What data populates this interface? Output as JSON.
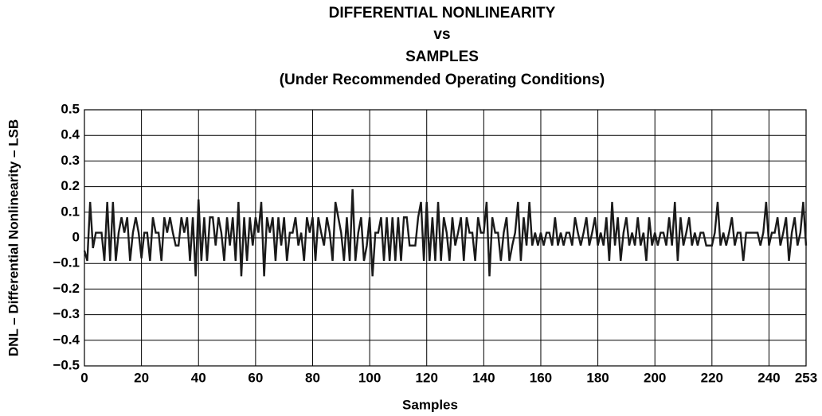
{
  "chart_data": {
    "type": "line",
    "title": [
      "DIFFERENTIAL NONLINEARITY",
      "vs",
      "SAMPLES",
      "(Under Recommended Operating Conditions)"
    ],
    "xlabel": "Samples",
    "ylabel": "DNL – Differential Nonlinearity – LSB",
    "color": "#1a1a1a",
    "grid": true,
    "xlim": [
      0,
      253
    ],
    "ylim": [
      -0.5,
      0.5
    ],
    "xticks": [
      0,
      20,
      40,
      60,
      80,
      100,
      120,
      140,
      160,
      180,
      200,
      220,
      240,
      253
    ],
    "yticks": [
      0.5,
      0.4,
      0.3,
      0.2,
      0.1,
      0,
      {
        "value": -0.1,
        "label": "−0.1"
      },
      {
        "value": -0.2,
        "label": "−0.2"
      },
      {
        "value": -0.3,
        "label": "−0.3"
      },
      {
        "value": -0.4,
        "label": "−0.4"
      },
      {
        "value": -0.5,
        "label": "−0.5"
      }
    ],
    "x": [
      0,
      1,
      2,
      3,
      4,
      5,
      6,
      7,
      8,
      9,
      10,
      11,
      12,
      13,
      14,
      15,
      16,
      17,
      18,
      19,
      20,
      21,
      22,
      23,
      24,
      25,
      26,
      27,
      28,
      29,
      30,
      31,
      32,
      33,
      34,
      35,
      36,
      37,
      38,
      39,
      40,
      41,
      42,
      43,
      44,
      45,
      46,
      47,
      48,
      49,
      50,
      51,
      52,
      53,
      54,
      55,
      56,
      57,
      58,
      59,
      60,
      61,
      62,
      63,
      64,
      65,
      66,
      67,
      68,
      69,
      70,
      71,
      72,
      73,
      74,
      75,
      76,
      77,
      78,
      79,
      80,
      81,
      82,
      83,
      84,
      85,
      86,
      87,
      88,
      89,
      90,
      91,
      92,
      93,
      94,
      95,
      96,
      97,
      98,
      99,
      100,
      101,
      102,
      103,
      104,
      105,
      106,
      107,
      108,
      109,
      110,
      111,
      112,
      113,
      114,
      115,
      116,
      117,
      118,
      119,
      120,
      121,
      122,
      123,
      124,
      125,
      126,
      127,
      128,
      129,
      130,
      131,
      132,
      133,
      134,
      135,
      136,
      137,
      138,
      139,
      140,
      141,
      142,
      143,
      144,
      145,
      146,
      147,
      148,
      149,
      150,
      151,
      152,
      153,
      154,
      155,
      156,
      157,
      158,
      159,
      160,
      161,
      162,
      163,
      164,
      165,
      166,
      167,
      168,
      169,
      170,
      171,
      172,
      173,
      174,
      175,
      176,
      177,
      178,
      179,
      180,
      181,
      182,
      183,
      184,
      185,
      186,
      187,
      188,
      189,
      190,
      191,
      192,
      193,
      194,
      195,
      196,
      197,
      198,
      199,
      200,
      201,
      202,
      203,
      204,
      205,
      206,
      207,
      208,
      209,
      210,
      211,
      212,
      213,
      214,
      215,
      216,
      217,
      218,
      219,
      220,
      221,
      222,
      223,
      224,
      225,
      226,
      227,
      228,
      229,
      230,
      231,
      232,
      233,
      234,
      235,
      236,
      237,
      238,
      239,
      240,
      241,
      242,
      243,
      244,
      245,
      246,
      247,
      248,
      249,
      250,
      251,
      252,
      253
    ],
    "values": [
      -0.05,
      -0.09,
      0.14,
      -0.04,
      0.02,
      0.02,
      0.02,
      -0.09,
      0.14,
      -0.09,
      0.14,
      -0.09,
      0.02,
      0.08,
      0.02,
      0.08,
      -0.09,
      0.02,
      0.08,
      0.02,
      -0.08,
      0.02,
      0.02,
      -0.09,
      0.08,
      0.02,
      0.02,
      -0.09,
      0.08,
      0.02,
      0.08,
      0.02,
      -0.03,
      -0.03,
      0.08,
      0.02,
      0.08,
      -0.09,
      0.08,
      -0.15,
      0.15,
      -0.09,
      0.08,
      -0.09,
      0.08,
      0.08,
      -0.03,
      0.08,
      0.02,
      -0.09,
      0.08,
      -0.03,
      0.08,
      -0.09,
      0.14,
      -0.15,
      0.08,
      -0.09,
      0.08,
      -0.03,
      0.08,
      0.02,
      0.14,
      -0.15,
      0.08,
      0.02,
      0.08,
      -0.09,
      0.08,
      -0.03,
      0.08,
      -0.09,
      0.02,
      0.02,
      0.08,
      -0.03,
      0.02,
      -0.09,
      0.08,
      0.02,
      0.08,
      -0.09,
      0.08,
      0.02,
      -0.03,
      0.08,
      0.02,
      -0.09,
      0.14,
      0.08,
      0.02,
      -0.09,
      0.08,
      -0.09,
      0.19,
      -0.09,
      0.02,
      0.08,
      -0.09,
      -0.03,
      0.08,
      -0.15,
      0.02,
      0.02,
      0.08,
      -0.09,
      0.08,
      -0.09,
      0.08,
      -0.09,
      0.08,
      -0.09,
      0.08,
      0.08,
      -0.03,
      -0.03,
      -0.03,
      0.08,
      0.14,
      -0.09,
      0.14,
      -0.09,
      0.08,
      -0.09,
      0.14,
      -0.09,
      0.08,
      0.02,
      -0.09,
      0.08,
      -0.03,
      0.02,
      0.08,
      -0.09,
      0.08,
      0.02,
      0.02,
      -0.09,
      0.08,
      0.02,
      0.02,
      0.14,
      -0.15,
      0.08,
      0.02,
      0.02,
      -0.09,
      0.02,
      0.08,
      -0.09,
      -0.03,
      0.02,
      0.14,
      -0.09,
      0.08,
      -0.03,
      0.14,
      -0.03,
      0.02,
      -0.03,
      0.02,
      -0.03,
      0.02,
      0.02,
      -0.03,
      0.08,
      -0.03,
      0.02,
      -0.03,
      0.02,
      0.02,
      -0.03,
      0.08,
      0.02,
      -0.03,
      0.02,
      0.08,
      -0.03,
      0.02,
      0.08,
      -0.03,
      0.02,
      -0.03,
      0.08,
      -0.09,
      0.14,
      -0.03,
      0.08,
      -0.09,
      0.02,
      0.08,
      -0.03,
      0.02,
      -0.03,
      0.08,
      -0.03,
      0.02,
      -0.09,
      0.08,
      -0.03,
      0.02,
      -0.03,
      0.02,
      0.02,
      -0.03,
      0.08,
      -0.03,
      0.14,
      -0.09,
      0.08,
      -0.03,
      0.02,
      0.08,
      -0.03,
      0.02,
      -0.03,
      0.02,
      0.02,
      -0.03,
      -0.03,
      -0.03,
      0.02,
      0.14,
      -0.03,
      0.02,
      -0.03,
      0.02,
      0.08,
      -0.03,
      0.02,
      0.02,
      -0.09,
      0.02,
      0.02,
      0.02,
      0.02,
      0.02,
      -0.03,
      0.02,
      0.14,
      -0.03,
      0.02,
      0.02,
      0.08,
      -0.03,
      0.02,
      0.08,
      -0.09,
      0.02,
      0.08,
      -0.03,
      0.02,
      0.14,
      -0.03
    ]
  }
}
